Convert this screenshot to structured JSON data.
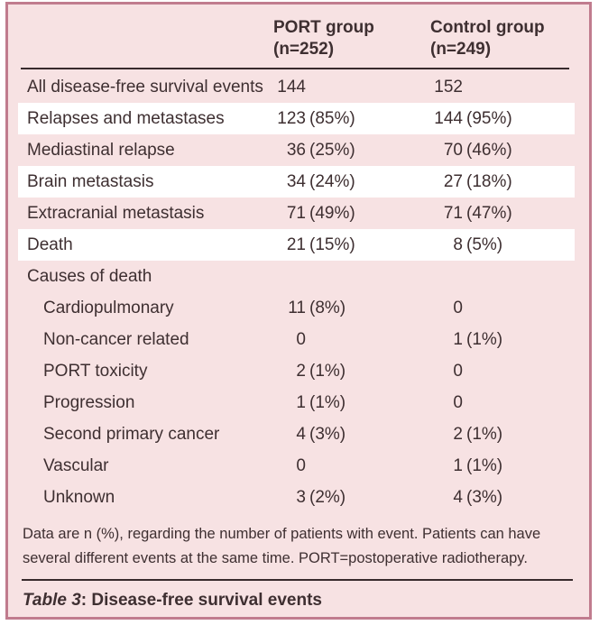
{
  "table": {
    "caption_prefix": "Table 3",
    "caption_rest": ": Disease-free survival events",
    "footnote": "Data are n (%), regarding the number of patients with event. Patients can have several different events at the same time. PORT=postoperative radiotherapy.",
    "columns": [
      {
        "line1": "PORT group",
        "line2": "(n=252)"
      },
      {
        "line1": "Control group",
        "line2": "(n=249)"
      }
    ],
    "rows": [
      {
        "label": "All disease-free survival events",
        "port_n": "144",
        "port_pct": "",
        "control_n": "152",
        "control_pct": ""
      },
      {
        "label": "Relapses and metastases",
        "port_n": "123",
        "port_pct": "(85%)",
        "control_n": "144",
        "control_pct": "(95%)"
      },
      {
        "label": "Mediastinal relapse",
        "port_n": "36",
        "port_pct": "(25%)",
        "control_n": "70",
        "control_pct": "(46%)"
      },
      {
        "label": "Brain metastasis",
        "port_n": "34",
        "port_pct": "(24%)",
        "control_n": "27",
        "control_pct": "(18%)"
      },
      {
        "label": "Extracranial metastasis",
        "port_n": "71",
        "port_pct": "(49%)",
        "control_n": "71",
        "control_pct": "(47%)"
      },
      {
        "label": "Death",
        "port_n": "21",
        "port_pct": "(15%)",
        "control_n": "8",
        "control_pct": "(5%)"
      },
      {
        "label": "Causes of death",
        "port_n": "",
        "port_pct": "",
        "control_n": "",
        "control_pct": ""
      },
      {
        "label": "Cardiopulmonary",
        "port_n": "11",
        "port_pct": "(8%)",
        "control_n": "0",
        "control_pct": ""
      },
      {
        "label": "Non-cancer related",
        "port_n": "0",
        "port_pct": "",
        "control_n": "1",
        "control_pct": "(1%)"
      },
      {
        "label": "PORT toxicity",
        "port_n": "2",
        "port_pct": "(1%)",
        "control_n": "0",
        "control_pct": ""
      },
      {
        "label": "Progression",
        "port_n": "1",
        "port_pct": "(1%)",
        "control_n": "0",
        "control_pct": ""
      },
      {
        "label": "Second primary cancer",
        "port_n": "4",
        "port_pct": "(3%)",
        "control_n": "2",
        "control_pct": "(1%)"
      },
      {
        "label": "Vascular",
        "port_n": "0",
        "port_pct": "",
        "control_n": "1",
        "control_pct": "(1%)"
      },
      {
        "label": "Unknown",
        "port_n": "3",
        "port_pct": "(2%)",
        "control_n": "4",
        "control_pct": "(3%)"
      }
    ],
    "colors": {
      "background": "#f7e2e3",
      "stripe": "#ffffff",
      "border": "#c07c8e",
      "rule": "#382a2c",
      "text": "#3e2f31"
    }
  }
}
